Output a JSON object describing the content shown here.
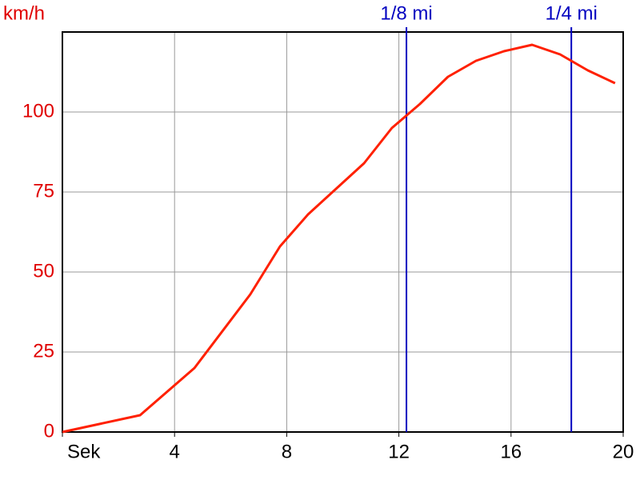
{
  "chart_data": {
    "type": "line",
    "y_label": "km/h",
    "x": [
      0,
      2.77,
      4.71,
      6.7,
      7.76,
      8.76,
      9.76,
      10.76,
      11.75,
      12.75,
      13.75,
      14.75,
      15.75,
      16.75,
      17.75,
      18.74,
      19.71
    ],
    "series": [
      {
        "color": "#ff2000",
        "values": [
          0,
          5.25,
          20,
          43,
          58,
          68,
          76,
          84,
          95,
          102.5,
          111,
          116,
          119,
          121,
          118,
          113,
          109
        ]
      }
    ],
    "xlim": [
      0,
      20
    ],
    "xticks": [
      {
        "value": 0,
        "label": "Sek"
      },
      4,
      8,
      12,
      16,
      20
    ],
    "ylim": [
      0,
      125
    ],
    "yticks": [
      0,
      25,
      50,
      75,
      100
    ],
    "grid": true,
    "markers": [
      {
        "x": 12.27,
        "label": "1/8 mi",
        "color": "#0000c0"
      },
      {
        "x": 18.15,
        "label": "1/4 mi",
        "color": "#0000c0"
      }
    ]
  }
}
